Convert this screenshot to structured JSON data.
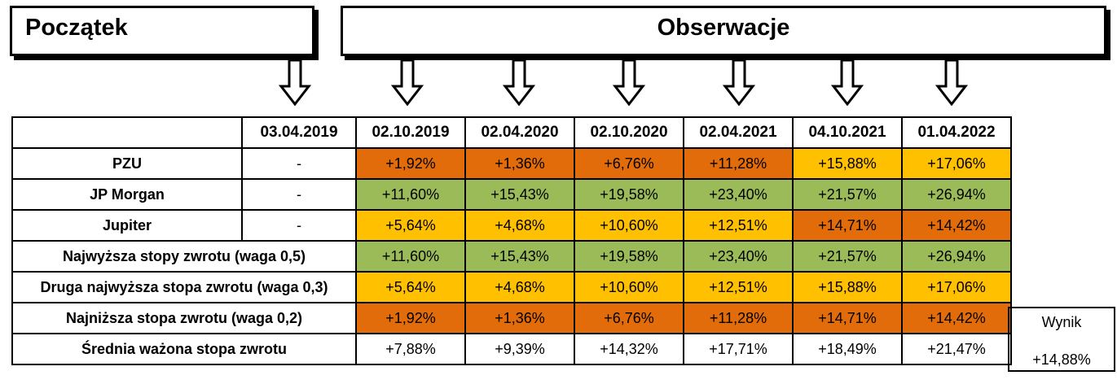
{
  "header": {
    "start": "Początek",
    "observations": "Obserwacje"
  },
  "dates": [
    "03.04.2019",
    "02.10.2019",
    "02.04.2020",
    "02.10.2020",
    "02.04.2021",
    "04.10.2021",
    "01.04.2022"
  ],
  "rows": [
    {
      "label": "PZU",
      "start": "-",
      "values": [
        "+1,92%",
        "+1,36%",
        "+6,76%",
        "+11,28%",
        "+15,88%",
        "+17,06%"
      ],
      "colors": [
        "#e26b0a",
        "#e26b0a",
        "#e26b0a",
        "#e26b0a",
        "#ffc000",
        "#ffc000"
      ]
    },
    {
      "label": "JP Morgan",
      "start": "-",
      "values": [
        "+11,60%",
        "+15,43%",
        "+19,58%",
        "+23,40%",
        "+21,57%",
        "+26,94%"
      ],
      "colors": [
        "#9bbb59",
        "#9bbb59",
        "#9bbb59",
        "#9bbb59",
        "#9bbb59",
        "#9bbb59"
      ]
    },
    {
      "label": "Jupiter",
      "start": "-",
      "values": [
        "+5,64%",
        "+4,68%",
        "+10,60%",
        "+12,51%",
        "+14,71%",
        "+14,42%"
      ],
      "colors": [
        "#ffc000",
        "#ffc000",
        "#ffc000",
        "#ffc000",
        "#e26b0a",
        "#e26b0a"
      ]
    },
    {
      "label": "Najwyższa stopy zwrotu (waga 0,5)",
      "values": [
        "+11,60%",
        "+15,43%",
        "+19,58%",
        "+23,40%",
        "+21,57%",
        "+26,94%"
      ],
      "colors": [
        "#9bbb59",
        "#9bbb59",
        "#9bbb59",
        "#9bbb59",
        "#9bbb59",
        "#9bbb59"
      ]
    },
    {
      "label": "Druga najwyższa stopa zwrotu (waga 0,3)",
      "values": [
        "+5,64%",
        "+4,68%",
        "+10,60%",
        "+12,51%",
        "+15,88%",
        "+17,06%"
      ],
      "colors": [
        "#ffc000",
        "#ffc000",
        "#ffc000",
        "#ffc000",
        "#ffc000",
        "#ffc000"
      ]
    },
    {
      "label": "Najniższa stopa zwrotu (waga 0,2)",
      "values": [
        "+1,92%",
        "+1,36%",
        "+6,76%",
        "+11,28%",
        "+14,71%",
        "+14,42%"
      ],
      "colors": [
        "#e26b0a",
        "#e26b0a",
        "#e26b0a",
        "#e26b0a",
        "#e26b0a",
        "#e26b0a"
      ]
    },
    {
      "label": "Średnia ważona stopa zwrotu",
      "values": [
        "+7,88%",
        "+9,39%",
        "+14,32%",
        "+17,71%",
        "+18,49%",
        "+21,47%"
      ],
      "colors": [
        "#ffffff",
        "#ffffff",
        "#ffffff",
        "#ffffff",
        "#ffffff",
        "#ffffff"
      ]
    }
  ],
  "result": {
    "label": "Wynik",
    "value": "+14,88%"
  }
}
